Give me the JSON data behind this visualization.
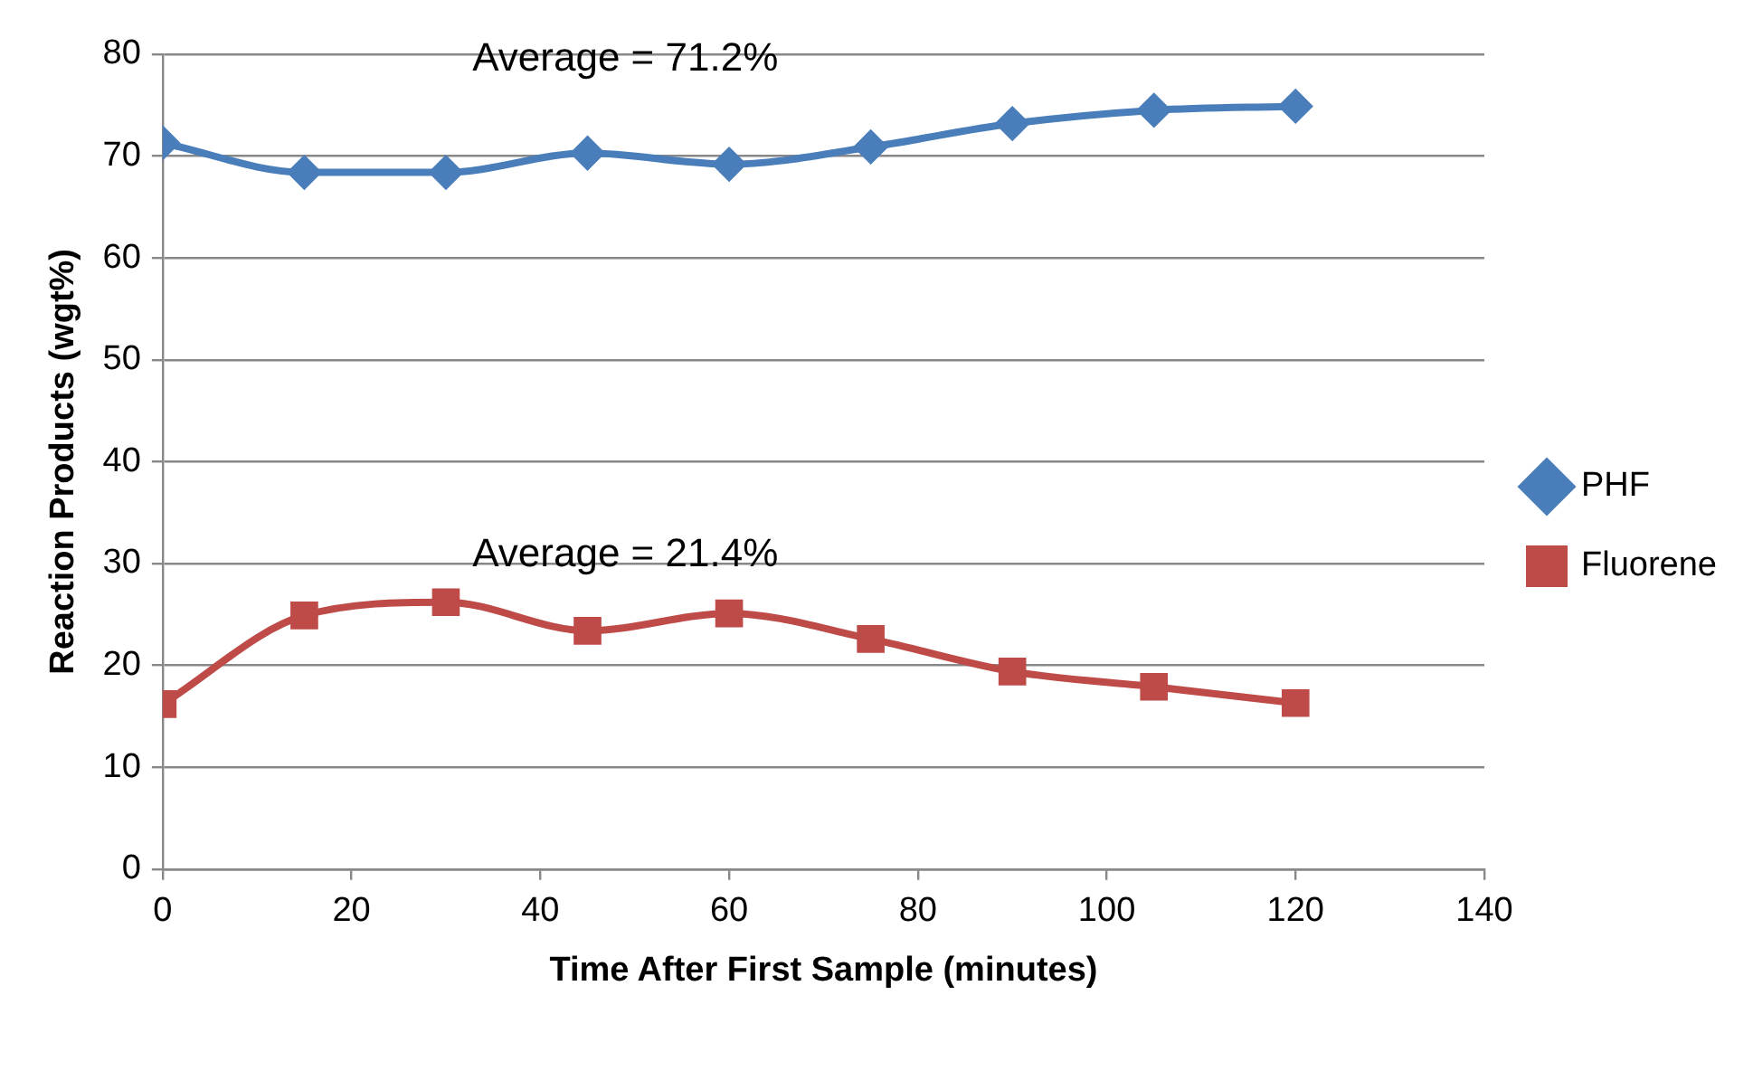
{
  "chart_data": {
    "type": "line",
    "xlabel": "Time After First Sample (minutes)",
    "ylabel": "Reaction Products (wgt%)",
    "x": [
      0,
      15,
      30,
      45,
      60,
      75,
      90,
      105,
      120
    ],
    "series": [
      {
        "name": "PHF",
        "color": "#4a7ebb",
        "marker": "diamond",
        "values": [
          71.3,
          68.4,
          68.4,
          70.3,
          69.2,
          70.9,
          73.2,
          74.5,
          74.9
        ]
      },
      {
        "name": "Fluorene",
        "color": "#be4b48",
        "marker": "square",
        "values": [
          16.2,
          24.9,
          26.2,
          23.4,
          25.1,
          22.6,
          19.4,
          17.9,
          16.3
        ]
      }
    ],
    "xlim": [
      0,
      140
    ],
    "xticks": [
      0,
      20,
      40,
      60,
      80,
      100,
      120,
      140
    ],
    "ylim": [
      0,
      80
    ],
    "yticks": [
      0,
      10,
      20,
      30,
      40,
      50,
      60,
      70,
      80
    ],
    "grid": "y",
    "legend": "right",
    "line_style": "solid",
    "annotations": [
      "Average = 71.2%",
      "Average = 21.4%"
    ]
  }
}
